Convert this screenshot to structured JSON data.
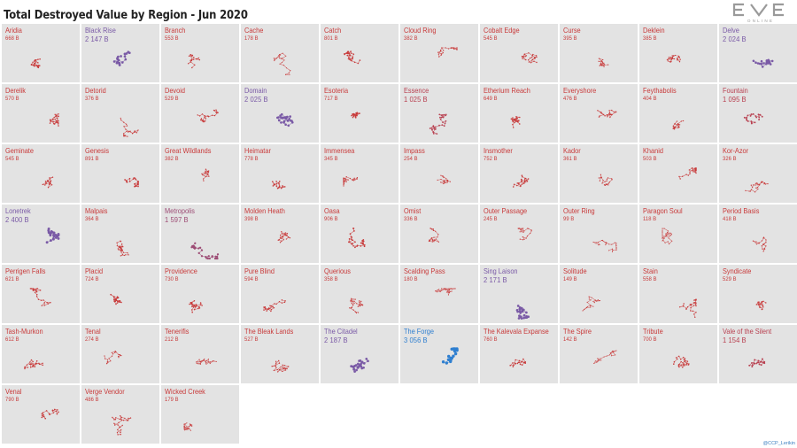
{
  "title": "Total Destroyed Value by Region - Jun 2020",
  "logo": {
    "name": "EVE",
    "subtitle": "ONLINE"
  },
  "credit": "@CCP_Lerikin",
  "colors": {
    "low": "#c83a3a",
    "mid": "#7a5aa6",
    "high": "#2f7fd0",
    "cell_bg": "#e3e3e3"
  },
  "chart_data": {
    "type": "small-multiples",
    "unit": "B",
    "regions": [
      {
        "name": "Aridia",
        "value_label": "668 B",
        "value": 668
      },
      {
        "name": "Black Rise",
        "value_label": "2 147 B",
        "value": 2147
      },
      {
        "name": "Branch",
        "value_label": "553 B",
        "value": 553
      },
      {
        "name": "Cache",
        "value_label": "178 B",
        "value": 178
      },
      {
        "name": "Catch",
        "value_label": "801 B",
        "value": 801
      },
      {
        "name": "Cloud Ring",
        "value_label": "382 B",
        "value": 382
      },
      {
        "name": "Cobalt Edge",
        "value_label": "545 B",
        "value": 545
      },
      {
        "name": "Curse",
        "value_label": "395 B",
        "value": 395
      },
      {
        "name": "Deklein",
        "value_label": "385 B",
        "value": 385
      },
      {
        "name": "Delve",
        "value_label": "2 024 B",
        "value": 2024
      },
      {
        "name": "Derelik",
        "value_label": "570 B",
        "value": 570
      },
      {
        "name": "Detorid",
        "value_label": "376 B",
        "value": 376
      },
      {
        "name": "Devoid",
        "value_label": "529 B",
        "value": 529
      },
      {
        "name": "Domain",
        "value_label": "2 025 B",
        "value": 2025
      },
      {
        "name": "Esoteria",
        "value_label": "717 B",
        "value": 717
      },
      {
        "name": "Essence",
        "value_label": "1 025 B",
        "value": 1025
      },
      {
        "name": "Etherium Reach",
        "value_label": "649 B",
        "value": 649
      },
      {
        "name": "Everyshore",
        "value_label": "476 B",
        "value": 476
      },
      {
        "name": "Feythabolis",
        "value_label": "404 B",
        "value": 404
      },
      {
        "name": "Fountain",
        "value_label": "1 095 B",
        "value": 1095
      },
      {
        "name": "Geminate",
        "value_label": "545 B",
        "value": 545
      },
      {
        "name": "Genesis",
        "value_label": "891 B",
        "value": 891
      },
      {
        "name": "Great Wildlands",
        "value_label": "382 B",
        "value": 382
      },
      {
        "name": "Heimatar",
        "value_label": "778 B",
        "value": 778
      },
      {
        "name": "Immensea",
        "value_label": "345 B",
        "value": 345
      },
      {
        "name": "Impass",
        "value_label": "254 B",
        "value": 254
      },
      {
        "name": "Insmother",
        "value_label": "752 B",
        "value": 752
      },
      {
        "name": "Kador",
        "value_label": "361 B",
        "value": 361
      },
      {
        "name": "Khanid",
        "value_label": "503 B",
        "value": 503
      },
      {
        "name": "Kor-Azor",
        "value_label": "326 B",
        "value": 326
      },
      {
        "name": "Lonetrek",
        "value_label": "2 400 B",
        "value": 2400
      },
      {
        "name": "Malpais",
        "value_label": "364 B",
        "value": 364
      },
      {
        "name": "Metropolis",
        "value_label": "1 597 B",
        "value": 1597
      },
      {
        "name": "Molden Heath",
        "value_label": "398 B",
        "value": 398
      },
      {
        "name": "Oasa",
        "value_label": "906 B",
        "value": 906
      },
      {
        "name": "Omist",
        "value_label": "336 B",
        "value": 336
      },
      {
        "name": "Outer Passage",
        "value_label": "245 B",
        "value": 245
      },
      {
        "name": "Outer Ring",
        "value_label": "99 B",
        "value": 99
      },
      {
        "name": "Paragon Soul",
        "value_label": "118 B",
        "value": 118
      },
      {
        "name": "Period Basis",
        "value_label": "418 B",
        "value": 418
      },
      {
        "name": "Perrigen Falls",
        "value_label": "621 B",
        "value": 621
      },
      {
        "name": "Placid",
        "value_label": "724 B",
        "value": 724
      },
      {
        "name": "Providence",
        "value_label": "730 B",
        "value": 730
      },
      {
        "name": "Pure Blind",
        "value_label": "594 B",
        "value": 594
      },
      {
        "name": "Querious",
        "value_label": "358 B",
        "value": 358
      },
      {
        "name": "Scalding Pass",
        "value_label": "180 B",
        "value": 180
      },
      {
        "name": "Sing Laison",
        "value_label": "2 171 B",
        "value": 2171
      },
      {
        "name": "Solitude",
        "value_label": "149 B",
        "value": 149
      },
      {
        "name": "Stain",
        "value_label": "558 B",
        "value": 558
      },
      {
        "name": "Syndicate",
        "value_label": "529 B",
        "value": 529
      },
      {
        "name": "Tash-Murkon",
        "value_label": "612 B",
        "value": 612
      },
      {
        "name": "Tenal",
        "value_label": "274 B",
        "value": 274
      },
      {
        "name": "Tenerifis",
        "value_label": "212 B",
        "value": 212
      },
      {
        "name": "The Bleak Lands",
        "value_label": "527 B",
        "value": 527
      },
      {
        "name": "The Citadel",
        "value_label": "2 187 B",
        "value": 2187
      },
      {
        "name": "The Forge",
        "value_label": "3 056 B",
        "value": 3056
      },
      {
        "name": "The Kalevala Expanse",
        "value_label": "760 B",
        "value": 760
      },
      {
        "name": "The Spire",
        "value_label": "142 B",
        "value": 142
      },
      {
        "name": "Tribute",
        "value_label": "700 B",
        "value": 700
      },
      {
        "name": "Vale of the Silent",
        "value_label": "1 154 B",
        "value": 1154
      },
      {
        "name": "Venal",
        "value_label": "790 B",
        "value": 790
      },
      {
        "name": "Verge Vendor",
        "value_label": "486 B",
        "value": 486
      },
      {
        "name": "Wicked Creek",
        "value_label": "179 B",
        "value": 179
      }
    ]
  }
}
